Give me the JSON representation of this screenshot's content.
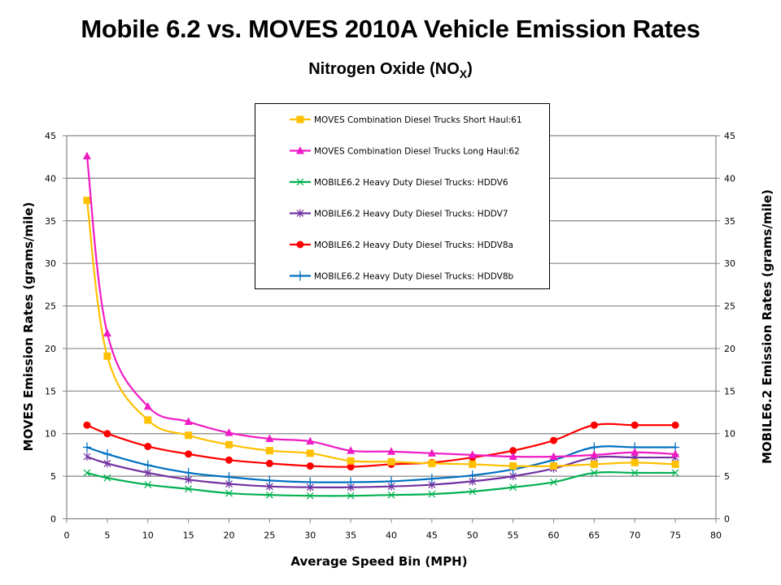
{
  "chart_data": {
    "type": "line",
    "title": "Mobile 6.2  vs. MOVES 2010A Vehicle Emission Rates",
    "subtitle": "Nitrogen Oxide (NO",
    "subtitle_sub": "X",
    "subtitle_end": ")",
    "xlabel": "Average Speed Bin (MPH)",
    "ylabel": "MOVES Emission Rates (grams/mile)",
    "y2label": "MOBILE6.2 Emission Rates (grams/mile)",
    "xlim": [
      0,
      80
    ],
    "ylim": [
      0,
      45
    ],
    "y2lim": [
      0,
      45
    ],
    "x_ticks": [
      "0",
      "5",
      "10",
      "15",
      "20",
      "25",
      "30",
      "35",
      "40",
      "45",
      "50",
      "55",
      "60",
      "65",
      "70",
      "75",
      "80"
    ],
    "y_ticks": [
      "0",
      "5",
      "10",
      "15",
      "20",
      "25",
      "30",
      "35",
      "40",
      "45"
    ],
    "grid": "horizontal",
    "legend_position": "top-center",
    "x": [
      2.5,
      5,
      10,
      15,
      20,
      25,
      30,
      35,
      40,
      45,
      50,
      55,
      60,
      65,
      70,
      75
    ],
    "series": [
      {
        "name": "MOVES Combination Diesel Trucks  Short Haul:61",
        "color": "#FFC000",
        "marker": "square",
        "axis": "left",
        "values": [
          37.4,
          19.1,
          11.6,
          9.8,
          8.7,
          8.0,
          7.7,
          6.8,
          6.7,
          6.5,
          6.4,
          6.2,
          6.2,
          6.4,
          6.6,
          6.4
        ]
      },
      {
        "name": "MOVES Combination Diesel Trucks  Long Haul:62",
        "color": "#F01BC4",
        "marker": "triangle",
        "axis": "left",
        "values": [
          42.6,
          21.8,
          13.2,
          11.4,
          10.1,
          9.4,
          9.1,
          8.0,
          7.9,
          7.7,
          7.5,
          7.3,
          7.3,
          7.5,
          7.8,
          7.6
        ]
      },
      {
        "name": "MOBILE6.2 Heavy Duty Diesel Trucks: HDDV6",
        "color": "#00B050",
        "marker": "x",
        "axis": "right",
        "values": [
          5.4,
          4.8,
          4.0,
          3.5,
          3.0,
          2.8,
          2.7,
          2.7,
          2.8,
          2.9,
          3.2,
          3.7,
          4.3,
          5.4,
          5.4,
          5.4
        ]
      },
      {
        "name": "MOBILE6.2 Heavy Duty Diesel Trucks: HDDV7",
        "color": "#7030A0",
        "marker": "star",
        "axis": "right",
        "values": [
          7.3,
          6.5,
          5.4,
          4.6,
          4.1,
          3.8,
          3.7,
          3.7,
          3.8,
          4.0,
          4.4,
          5.0,
          5.9,
          7.2,
          7.2,
          7.2
        ]
      },
      {
        "name": "MOBILE6.2 Heavy Duty Diesel Trucks: HDDV8a",
        "color": "#FF0000",
        "marker": "circle",
        "axis": "right",
        "values": [
          11.0,
          10.0,
          8.5,
          7.6,
          6.9,
          6.5,
          6.2,
          6.1,
          6.4,
          6.6,
          7.2,
          8.0,
          9.2,
          11.0,
          11.0,
          11.0
        ]
      },
      {
        "name": "MOBILE6.2 Heavy Duty Diesel Trucks: HDDV8b",
        "color": "#0070C0",
        "marker": "plus",
        "axis": "right",
        "values": [
          8.4,
          7.6,
          6.3,
          5.4,
          4.9,
          4.5,
          4.3,
          4.3,
          4.4,
          4.7,
          5.1,
          5.8,
          6.9,
          8.4,
          8.4,
          8.4
        ]
      }
    ]
  }
}
